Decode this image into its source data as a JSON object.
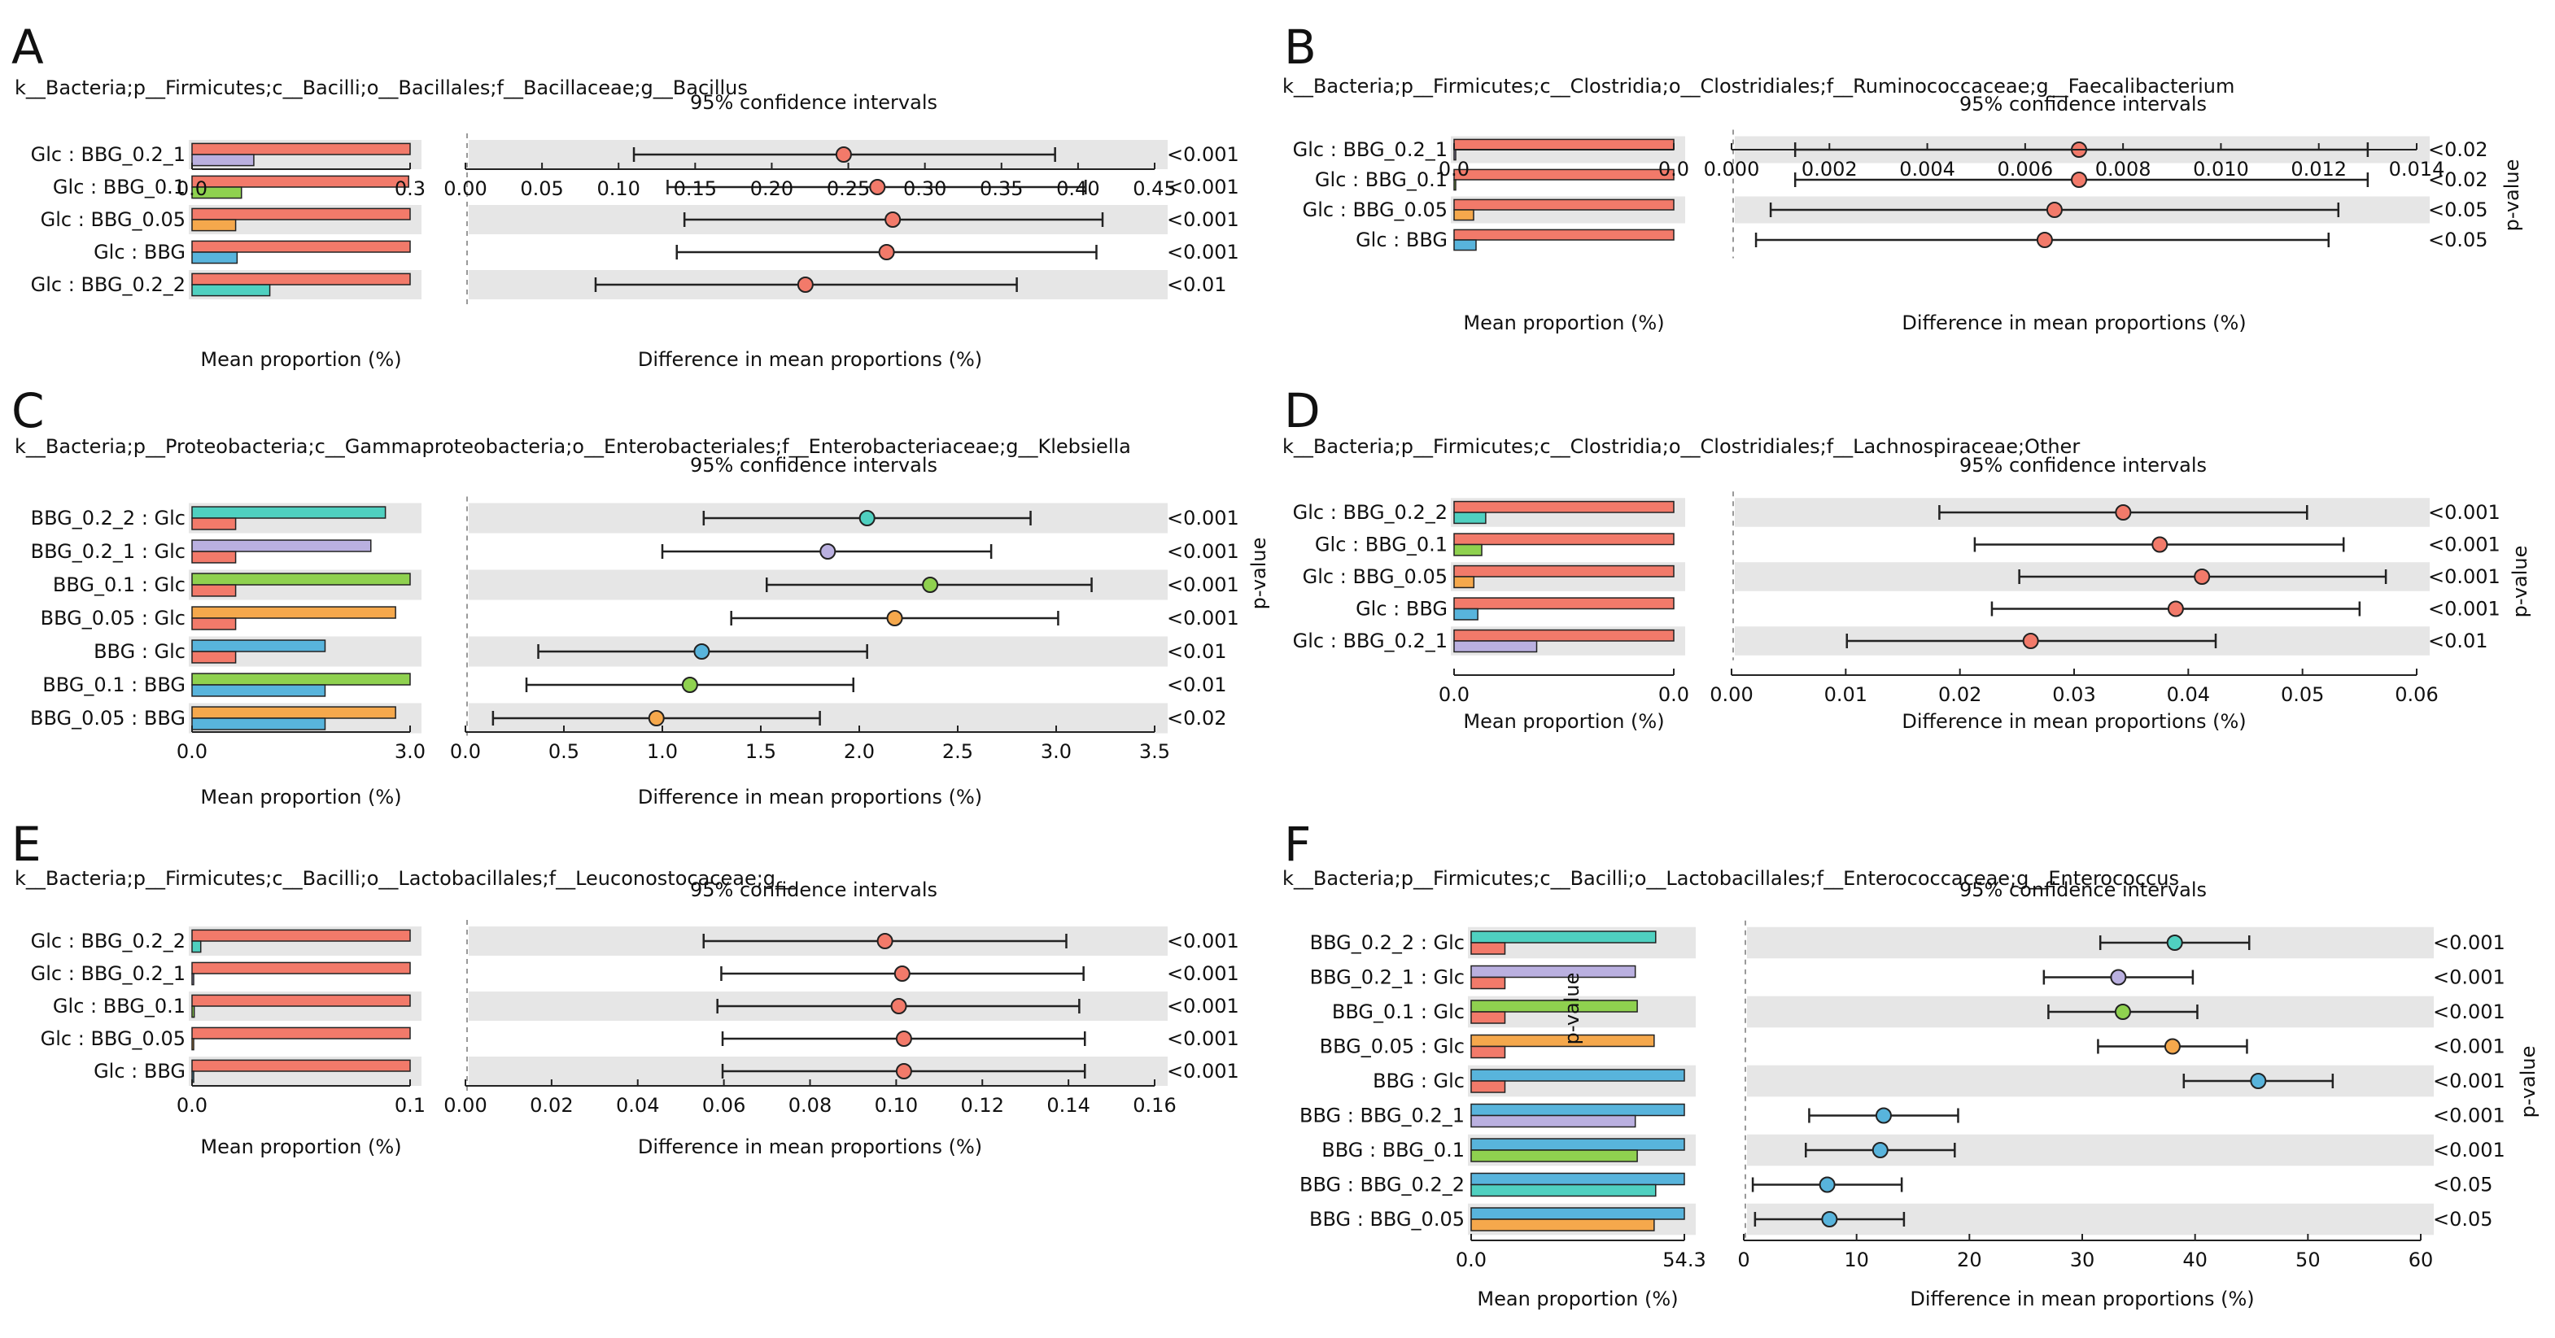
{
  "colors": {
    "Glc": "#f27a6a",
    "BBG": "#58b4dc",
    "BBG_0.05": "#f5a84c",
    "BBG_0.1": "#8fd14f",
    "BBG_0.2_1": "#bab0e0",
    "BBG_0.2_2": "#4fd0c0",
    "shade": "#e6e6e6",
    "axis": "#222222"
  },
  "chart_data": [
    {
      "type": "extended-error-bar",
      "panel_label": "A",
      "taxon": "k__Bacteria;p__Firmicutes;c__Bacilli;o__Bacillales;f__Bacillaceae;g__Bacillus",
      "ci_title": "95% confidence intervals",
      "xlabel_left": "Mean proportion (%)",
      "xlabel_right": "Difference in mean proportions (%)",
      "pvalue_label": "",
      "left_ticks": [
        "0.0",
        "0.3"
      ],
      "left_max": 0.3,
      "right_ticks": [
        "0.00",
        "0.05",
        "0.10",
        "0.15",
        "0.20",
        "0.25",
        "0.30",
        "0.35",
        "0.40",
        "0.45"
      ],
      "right_range": [
        0,
        0.45
      ],
      "rows": [
        {
          "label": "Glc : BBG_0.2_1",
          "g1": "Glc",
          "g2": "BBG_0.2_1",
          "mean1": 0.3,
          "mean2": 0.085,
          "diff": 0.247,
          "ci": [
            0.11,
            0.385
          ],
          "p": "<0.001"
        },
        {
          "label": "Glc : BBG_0.1",
          "g1": "Glc",
          "g2": "BBG_0.1",
          "mean1": 0.298,
          "mean2": 0.068,
          "diff": 0.269,
          "ci": [
            0.132,
            0.405
          ],
          "p": "<0.001"
        },
        {
          "label": "Glc : BBG_0.05",
          "g1": "Glc",
          "g2": "BBG_0.05",
          "mean1": 0.3,
          "mean2": 0.06,
          "diff": 0.279,
          "ci": [
            0.143,
            0.416
          ],
          "p": "<0.001"
        },
        {
          "label": "Glc : BBG",
          "g1": "Glc",
          "g2": "BBG",
          "mean1": 0.3,
          "mean2": 0.062,
          "diff": 0.275,
          "ci": [
            0.138,
            0.412
          ],
          "p": "<0.001"
        },
        {
          "label": "Glc : BBG_0.2_2",
          "g1": "Glc",
          "g2": "BBG_0.2_2",
          "mean1": 0.3,
          "mean2": 0.107,
          "diff": 0.222,
          "ci": [
            0.085,
            0.36
          ],
          "p": "<0.01"
        }
      ]
    },
    {
      "type": "extended-error-bar",
      "panel_label": "B",
      "taxon": "k__Bacteria;p__Firmicutes;c__Clostridia;o__Clostridiales;f__Ruminococcaceae;g__Faecalibacterium",
      "ci_title": "95% confidence intervals",
      "xlabel_left": "Mean proportion (%)",
      "xlabel_right": "Difference in mean proportions (%)",
      "pvalue_label": "p-value",
      "left_ticks": [
        "0.0",
        "0.0"
      ],
      "left_max": 0.009,
      "right_ticks": [
        "0.000",
        "0.002",
        "0.004",
        "0.006",
        "0.008",
        "0.010",
        "0.012",
        "0.014"
      ],
      "right_range": [
        0,
        0.014
      ],
      "rows": [
        {
          "label": "Glc : BBG_0.2_1",
          "g1": "Glc",
          "g2": "BBG_0.2_1",
          "mean1": 0.009,
          "mean2": 0.0,
          "diff": 0.0071,
          "ci": [
            0.0013,
            0.013
          ],
          "p": "<0.02"
        },
        {
          "label": "Glc : BBG_0.1",
          "g1": "Glc",
          "g2": "BBG_0.1",
          "mean1": 0.009,
          "mean2": 0.0,
          "diff": 0.0071,
          "ci": [
            0.0013,
            0.013
          ],
          "p": "<0.02"
        },
        {
          "label": "Glc : BBG_0.05",
          "g1": "Glc",
          "g2": "BBG_0.05",
          "mean1": 0.009,
          "mean2": 0.0008,
          "diff": 0.0066,
          "ci": [
            0.0008,
            0.0124
          ],
          "p": "<0.05"
        },
        {
          "label": "Glc : BBG",
          "g1": "Glc",
          "g2": "BBG",
          "mean1": 0.009,
          "mean2": 0.0009,
          "diff": 0.0064,
          "ci": [
            0.0005,
            0.0122
          ],
          "p": "<0.05"
        }
      ]
    },
    {
      "type": "extended-error-bar",
      "panel_label": "C",
      "taxon": "k__Bacteria;p__Proteobacteria;c__Gammaproteobacteria;o__Enterobacteriales;f__Enterobacteriaceae;g__Klebsiella",
      "ci_title": "95% confidence intervals",
      "xlabel_left": "Mean proportion (%)",
      "xlabel_right": "Difference in mean proportions (%)",
      "pvalue_label": "p-value",
      "left_ticks": [
        "0.0",
        "3.0"
      ],
      "left_max": 3.0,
      "right_ticks": [
        "0.0",
        "0.5",
        "1.0",
        "1.5",
        "2.0",
        "2.5",
        "3.0",
        "3.5"
      ],
      "right_range": [
        0,
        3.5
      ],
      "rows": [
        {
          "label": "BBG_0.2_2 : Glc",
          "g1": "BBG_0.2_2",
          "g2": "Glc",
          "mean1": 2.66,
          "mean2": 0.6,
          "diff": 2.04,
          "ci": [
            1.21,
            2.87
          ],
          "p": "<0.001"
        },
        {
          "label": "BBG_0.2_1 : Glc",
          "g1": "BBG_0.2_1",
          "g2": "Glc",
          "mean1": 2.46,
          "mean2": 0.6,
          "diff": 1.84,
          "ci": [
            1.0,
            2.67
          ],
          "p": "<0.001"
        },
        {
          "label": "BBG_0.1 : Glc",
          "g1": "BBG_0.1",
          "g2": "Glc",
          "mean1": 3.0,
          "mean2": 0.6,
          "diff": 2.36,
          "ci": [
            1.53,
            3.18
          ],
          "p": "<0.001"
        },
        {
          "label": "BBG_0.05 : Glc",
          "g1": "BBG_0.05",
          "g2": "Glc",
          "mean1": 2.8,
          "mean2": 0.6,
          "diff": 2.18,
          "ci": [
            1.35,
            3.01
          ],
          "p": "<0.001"
        },
        {
          "label": "BBG : Glc",
          "g1": "BBG",
          "g2": "Glc",
          "mean1": 1.83,
          "mean2": 0.6,
          "diff": 1.2,
          "ci": [
            0.37,
            2.04
          ],
          "p": "<0.01"
        },
        {
          "label": "BBG_0.1 : BBG",
          "g1": "BBG_0.1",
          "g2": "BBG",
          "mean1": 3.0,
          "mean2": 1.83,
          "diff": 1.14,
          "ci": [
            0.31,
            1.97
          ],
          "p": "<0.01"
        },
        {
          "label": "BBG_0.05 : BBG",
          "g1": "BBG_0.05",
          "g2": "BBG",
          "mean1": 2.8,
          "mean2": 1.83,
          "diff": 0.97,
          "ci": [
            0.14,
            1.8
          ],
          "p": "<0.02"
        }
      ]
    },
    {
      "type": "extended-error-bar",
      "panel_label": "D",
      "taxon": "k__Bacteria;p__Firmicutes;c__Clostridia;o__Clostridiales;f__Lachnospiraceae;Other",
      "ci_title": "95% confidence intervals",
      "xlabel_left": "Mean proportion (%)",
      "xlabel_right": "Difference in mean proportions (%)",
      "pvalue_label": "p-value",
      "left_ticks": [
        "0.0",
        "0.0"
      ],
      "left_max": 0.05,
      "right_ticks": [
        "0.00",
        "0.01",
        "0.02",
        "0.03",
        "0.04",
        "0.05",
        "0.06"
      ],
      "right_range": [
        0,
        0.06
      ],
      "rows": [
        {
          "label": "Glc : BBG_0.2_2",
          "g1": "Glc",
          "g2": "BBG_0.2_2",
          "mean1": 0.05,
          "mean2": 0.0072,
          "diff": 0.0343,
          "ci": [
            0.0182,
            0.0504
          ],
          "p": "<0.001"
        },
        {
          "label": "Glc : BBG_0.1",
          "g1": "Glc",
          "g2": "BBG_0.1",
          "mean1": 0.05,
          "mean2": 0.0063,
          "diff": 0.0375,
          "ci": [
            0.0213,
            0.0536
          ],
          "p": "<0.001"
        },
        {
          "label": "Glc : BBG_0.05",
          "g1": "Glc",
          "g2": "BBG_0.05",
          "mean1": 0.05,
          "mean2": 0.0045,
          "diff": 0.0412,
          "ci": [
            0.0252,
            0.0573
          ],
          "p": "<0.001"
        },
        {
          "label": "Glc : BBG",
          "g1": "Glc",
          "g2": "BBG",
          "mean1": 0.05,
          "mean2": 0.0054,
          "diff": 0.0389,
          "ci": [
            0.0228,
            0.055
          ],
          "p": "<0.001"
        },
        {
          "label": "Glc : BBG_0.2_1",
          "g1": "Glc",
          "g2": "BBG_0.2_1",
          "mean1": 0.05,
          "mean2": 0.0188,
          "diff": 0.0262,
          "ci": [
            0.0101,
            0.0424
          ],
          "p": "<0.01"
        }
      ]
    },
    {
      "type": "extended-error-bar",
      "panel_label": "E",
      "taxon": "k__Bacteria;p__Firmicutes;c__Bacilli;o__Lactobacillales;f__Leuconostocaceae;g__",
      "ci_title": "95% confidence intervals",
      "xlabel_left": "Mean proportion (%)",
      "xlabel_right": "Difference in mean proportions (%)",
      "pvalue_label": "",
      "left_ticks": [
        "0.0",
        "0.1"
      ],
      "left_max": 0.1,
      "right_ticks": [
        "0.00",
        "0.02",
        "0.04",
        "0.06",
        "0.08",
        "0.10",
        "0.12",
        "0.14",
        "0.16"
      ],
      "right_range": [
        0,
        0.16
      ],
      "rows": [
        {
          "label": "Glc : BBG_0.2_2",
          "g1": "Glc",
          "g2": "BBG_0.2_2",
          "mean1": 0.1,
          "mean2": 0.004,
          "diff": 0.0974,
          "ci": [
            0.0553,
            0.1395
          ],
          "p": "<0.001"
        },
        {
          "label": "Glc : BBG_0.2_1",
          "g1": "Glc",
          "g2": "BBG_0.2_1",
          "mean1": 0.1,
          "mean2": 0.0,
          "diff": 0.1014,
          "ci": [
            0.0594,
            0.1435
          ],
          "p": "<0.001"
        },
        {
          "label": "Glc : BBG_0.1",
          "g1": "Glc",
          "g2": "BBG_0.1",
          "mean1": 0.1,
          "mean2": 0.001,
          "diff": 0.1006,
          "ci": [
            0.0585,
            0.1425
          ],
          "p": "<0.001"
        },
        {
          "label": "Glc : BBG_0.05",
          "g1": "Glc",
          "g2": "BBG_0.05",
          "mean1": 0.1,
          "mean2": 0.0,
          "diff": 0.1018,
          "ci": [
            0.0597,
            0.1438
          ],
          "p": "<0.001"
        },
        {
          "label": "Glc : BBG",
          "g1": "Glc",
          "g2": "BBG",
          "mean1": 0.1,
          "mean2": 0.0,
          "diff": 0.1018,
          "ci": [
            0.0597,
            0.1438
          ],
          "p": "<0.001"
        }
      ]
    },
    {
      "type": "extended-error-bar",
      "panel_label": "F",
      "taxon": "k__Bacteria;p__Firmicutes;c__Bacilli;o__Lactobacillales;f__Enterococcaceae;g__Enterococcus",
      "ci_title": "95% confidence intervals",
      "xlabel_left": "Mean proportion (%)",
      "xlabel_right": "Difference in mean proportions (%)",
      "pvalue_label": "p-value",
      "left_ticks": [
        "0.0",
        "54.3"
      ],
      "left_max": 54.3,
      "right_ticks": [
        "0",
        "10",
        "20",
        "30",
        "40",
        "50",
        "60"
      ],
      "right_range": [
        0,
        60
      ],
      "rows": [
        {
          "label": "BBG_0.2_2 : Glc",
          "g1": "BBG_0.2_2",
          "g2": "Glc",
          "mean1": 47.0,
          "mean2": 8.6,
          "diff": 38.2,
          "ci": [
            31.6,
            44.8
          ],
          "p": "<0.001"
        },
        {
          "label": "BBG_0.2_1 : Glc",
          "g1": "BBG_0.2_1",
          "g2": "Glc",
          "mean1": 41.8,
          "mean2": 8.6,
          "diff": 33.2,
          "ci": [
            26.6,
            39.8
          ],
          "p": "<0.001"
        },
        {
          "label": "BBG_0.1 : Glc",
          "g1": "BBG_0.1",
          "g2": "Glc",
          "mean1": 42.3,
          "mean2": 8.6,
          "diff": 33.6,
          "ci": [
            27.0,
            40.2
          ],
          "p": "<0.001"
        },
        {
          "label": "BBG_0.05 : Glc",
          "g1": "BBG_0.05",
          "g2": "Glc",
          "mean1": 46.6,
          "mean2": 8.6,
          "diff": 38.0,
          "ci": [
            31.4,
            44.6
          ],
          "p": "<0.001"
        },
        {
          "label": "BBG : Glc",
          "g1": "BBG",
          "g2": "Glc",
          "mean1": 54.3,
          "mean2": 8.6,
          "diff": 45.6,
          "ci": [
            39.0,
            52.2
          ],
          "p": "<0.001"
        },
        {
          "label": "BBG : BBG_0.2_1",
          "g1": "BBG",
          "g2": "BBG_0.2_1",
          "mean1": 54.3,
          "mean2": 41.8,
          "diff": 12.4,
          "ci": [
            5.8,
            19.0
          ],
          "p": "<0.001"
        },
        {
          "label": "BBG : BBG_0.1",
          "g1": "BBG",
          "g2": "BBG_0.1",
          "mean1": 54.3,
          "mean2": 42.3,
          "diff": 12.1,
          "ci": [
            5.5,
            18.7
          ],
          "p": "<0.001"
        },
        {
          "label": "BBG : BBG_0.2_2",
          "g1": "BBG",
          "g2": "BBG_0.2_2",
          "mean1": 54.3,
          "mean2": 47.0,
          "diff": 7.4,
          "ci": [
            0.8,
            14.0
          ],
          "p": "<0.05"
        },
        {
          "label": "BBG : BBG_0.05",
          "g1": "BBG",
          "g2": "BBG_0.05",
          "mean1": 54.3,
          "mean2": 46.6,
          "diff": 7.6,
          "ci": [
            1.0,
            14.2
          ],
          "p": "<0.05"
        }
      ]
    }
  ]
}
